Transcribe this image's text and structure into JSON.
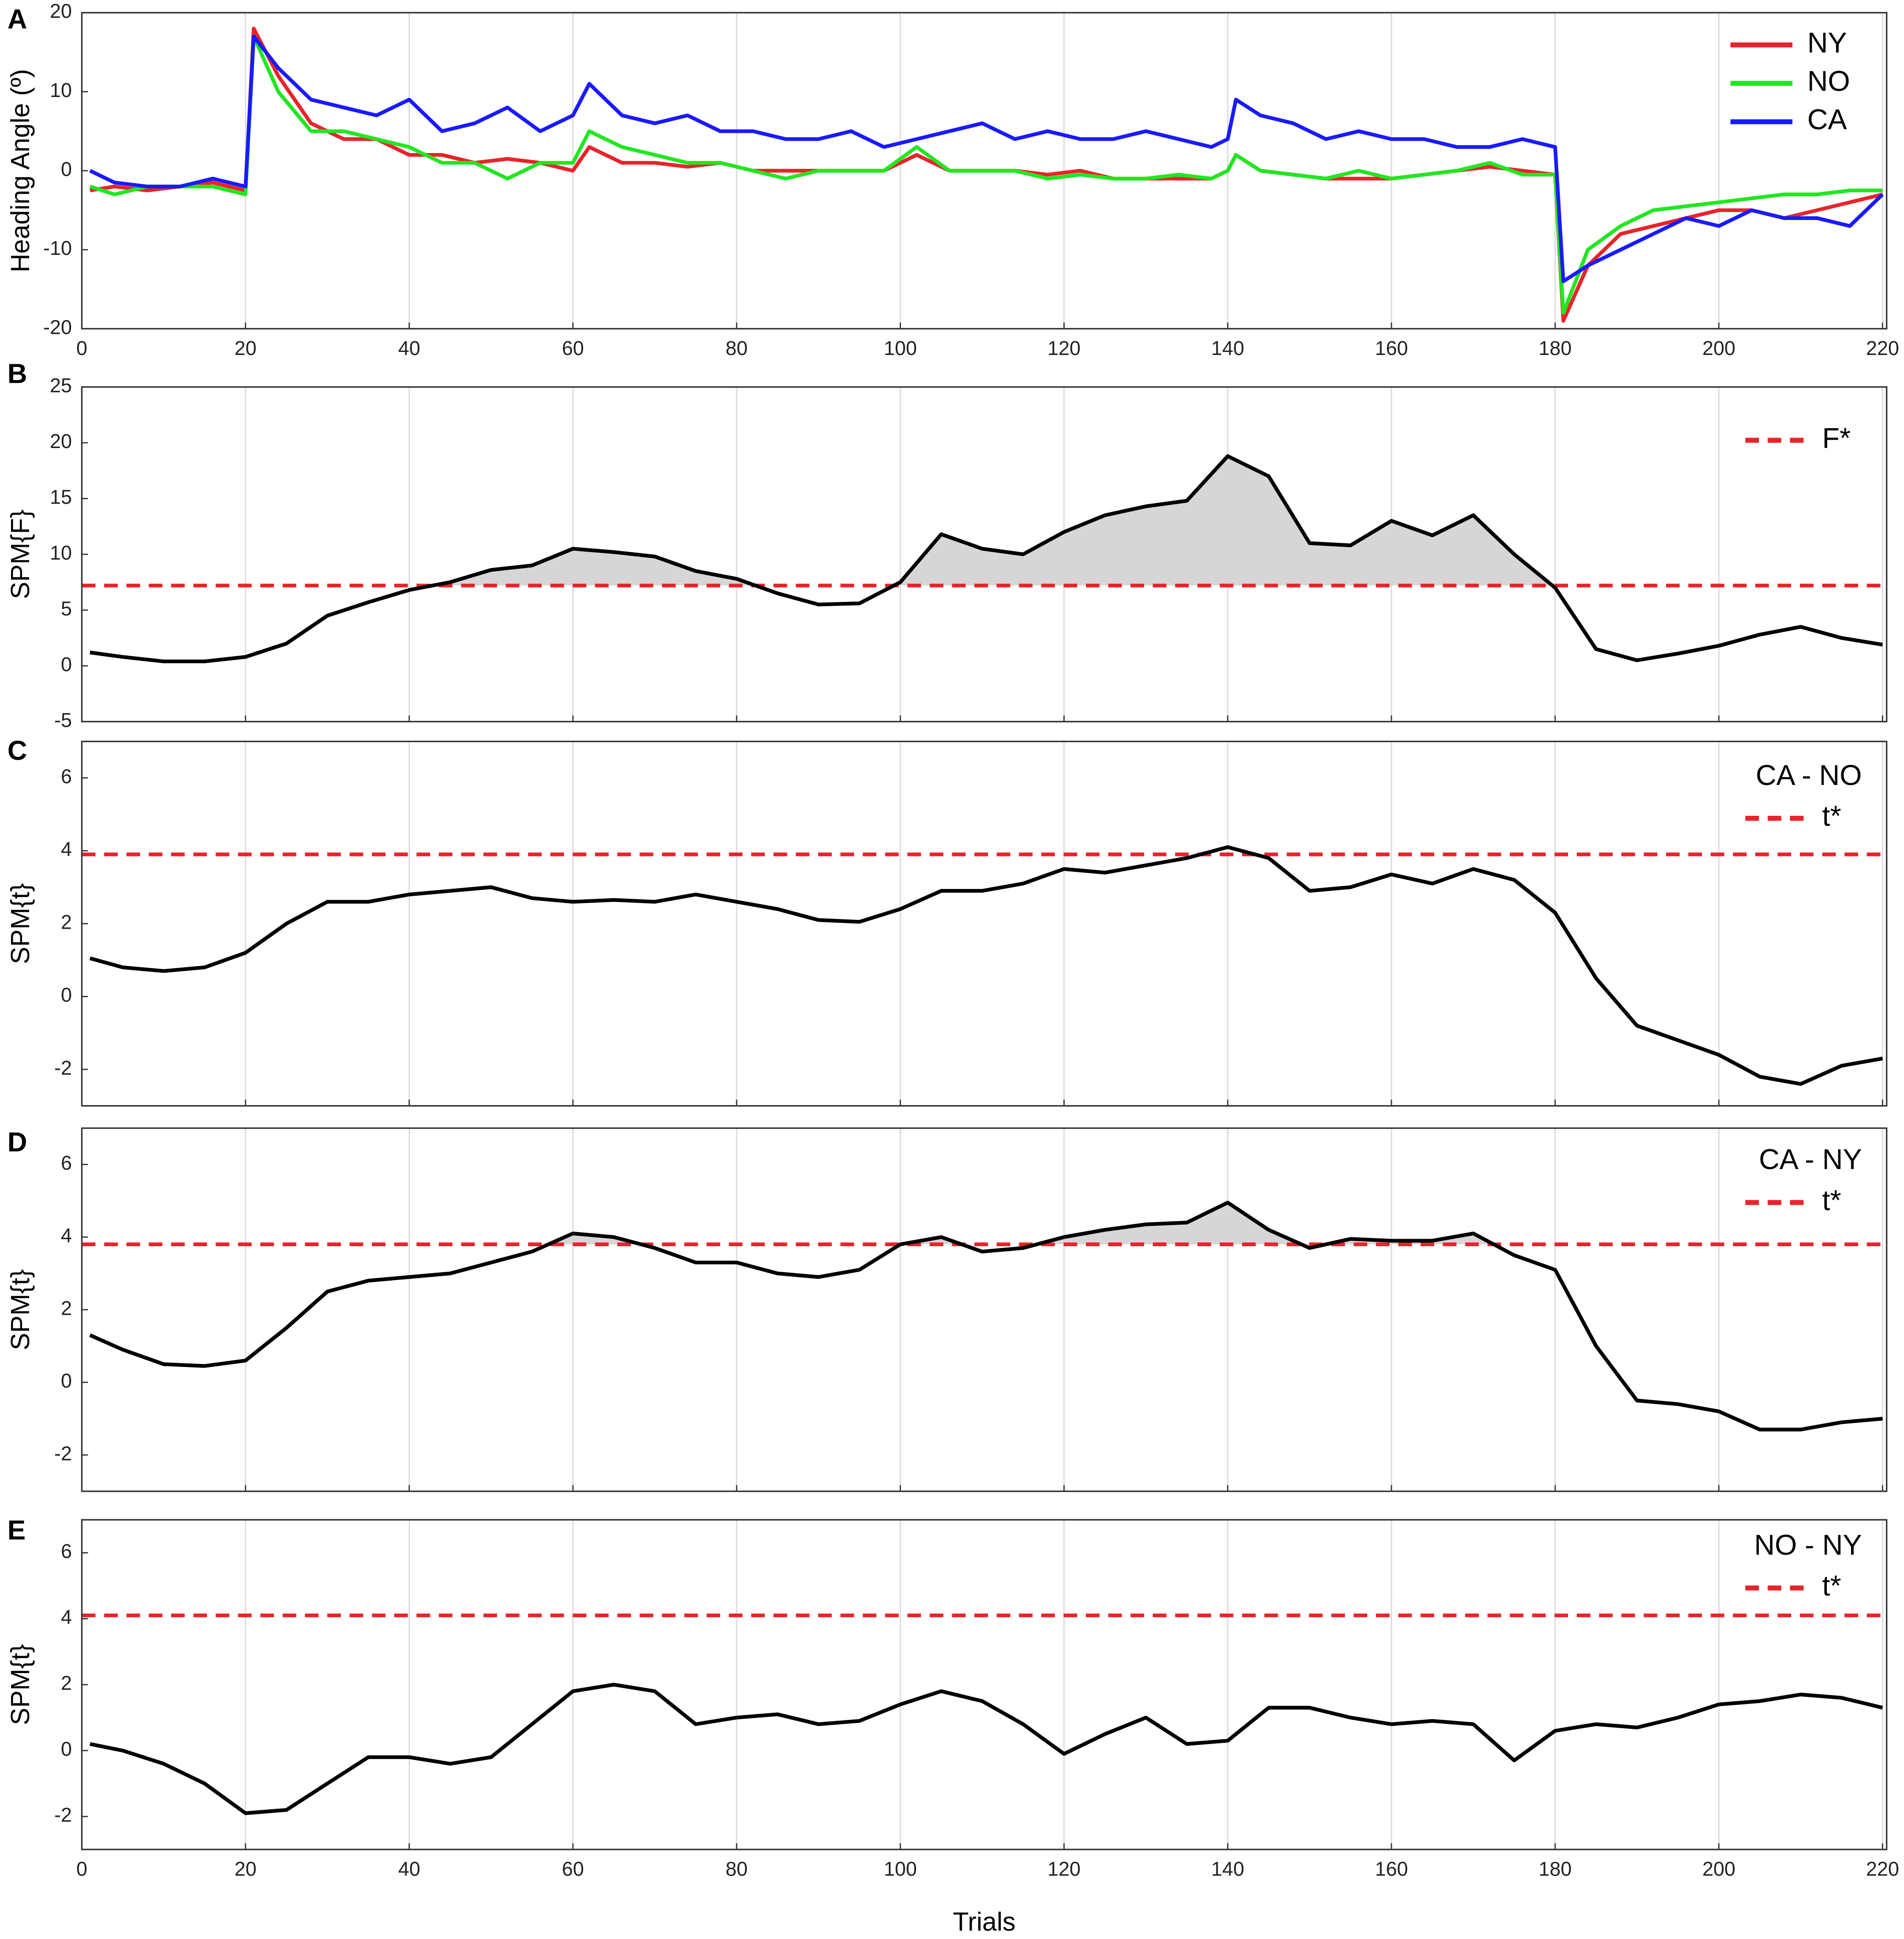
{
  "chart_data": [
    {
      "type": "line",
      "panel_label": "A",
      "ylabel": "Heading Angle (º)",
      "x": [
        1,
        4,
        8,
        12,
        16,
        20,
        21,
        24,
        28,
        32,
        36,
        40,
        44,
        48,
        52,
        56,
        60,
        62,
        66,
        70,
        74,
        78,
        82,
        86,
        90,
        94,
        98,
        102,
        106,
        110,
        114,
        118,
        122,
        126,
        130,
        134,
        138,
        140,
        141,
        144,
        148,
        152,
        156,
        160,
        164,
        168,
        172,
        176,
        180,
        181,
        184,
        188,
        192,
        196,
        200,
        204,
        208,
        212,
        216,
        220
      ],
      "series": [
        {
          "name": "NY",
          "color": "#e8242a",
          "values": [
            -2.5,
            -2,
            -2.5,
            -2,
            -1.5,
            -2.5,
            18,
            12,
            6,
            4,
            4,
            2,
            2,
            1,
            1.5,
            1,
            0,
            3,
            1,
            1,
            0.5,
            1,
            0,
            0,
            0,
            0,
            0,
            2,
            0,
            0,
            0,
            -0.5,
            0,
            -1,
            -1,
            -1,
            -1,
            0,
            2,
            0,
            -0.5,
            -1,
            -1,
            -1,
            -0.5,
            0,
            0.5,
            0,
            -0.5,
            -19,
            -12,
            -8,
            -7,
            -6,
            -5,
            -5,
            -6,
            -5,
            -4,
            -3
          ]
        },
        {
          "name": "NO",
          "color": "#22e622",
          "values": [
            -2,
            -3,
            -2,
            -2,
            -2,
            -3,
            17,
            10,
            5,
            5,
            4,
            3,
            1,
            1,
            -1,
            1,
            1,
            5,
            3,
            2,
            1,
            1,
            0,
            -1,
            0,
            0,
            0,
            3,
            0,
            0,
            0,
            -1,
            -0.5,
            -1,
            -1,
            -0.5,
            -1,
            0,
            2,
            0,
            -0.5,
            -1,
            0,
            -1,
            -0.5,
            0,
            1,
            -0.5,
            -0.5,
            -18,
            -10,
            -7,
            -5,
            -4.5,
            -4,
            -3.5,
            -3,
            -3,
            -2.5,
            -2.5
          ]
        },
        {
          "name": "CA",
          "color": "#1a1aff",
          "values": [
            0,
            -1.5,
            -2,
            -2,
            -1,
            -2,
            17,
            13,
            9,
            8,
            7,
            9,
            5,
            6,
            8,
            5,
            7,
            11,
            7,
            6,
            7,
            5,
            5,
            4,
            4,
            5,
            3,
            4,
            5,
            6,
            4,
            5,
            4,
            4,
            5,
            4,
            3,
            4,
            9,
            7,
            6,
            4,
            5,
            4,
            4,
            3,
            3,
            4,
            3,
            -14,
            -12,
            -10,
            -8,
            -6,
            -7,
            -5,
            -6,
            -6,
            -7,
            -3
          ]
        }
      ],
      "xlim": [
        0,
        220.5
      ],
      "xticks": [
        0,
        20,
        40,
        60,
        80,
        100,
        120,
        140,
        160,
        180,
        200,
        220
      ],
      "show_xtick_labels": true,
      "xgrid": true,
      "ylim": [
        -20,
        20
      ],
      "yticks": [
        -20,
        -10,
        0,
        10,
        20
      ]
    },
    {
      "type": "line",
      "panel_label": "B",
      "ylabel": "SPM{F}",
      "x": [
        1,
        5,
        10,
        15,
        20,
        25,
        30,
        35,
        40,
        45,
        50,
        55,
        60,
        65,
        70,
        75,
        80,
        85,
        90,
        95,
        100,
        105,
        110,
        115,
        120,
        125,
        130,
        135,
        140,
        145,
        150,
        155,
        160,
        165,
        170,
        175,
        180,
        185,
        190,
        195,
        200,
        205,
        210,
        215,
        220
      ],
      "values": [
        1.2,
        0.8,
        0.4,
        0.4,
        0.8,
        2,
        4.5,
        5.7,
        6.8,
        7.5,
        8.6,
        9,
        10.5,
        10.2,
        9.8,
        8.5,
        7.8,
        6.5,
        5.5,
        5.6,
        7.5,
        11.8,
        10.5,
        10,
        12,
        13.5,
        14.3,
        14.8,
        18.8,
        17,
        11,
        10.8,
        13,
        11.7,
        13.5,
        10,
        7,
        1.5,
        0.5,
        1.1,
        1.8,
        2.8,
        3.5,
        2.5,
        1.9
      ],
      "color": "#000000",
      "threshold": {
        "name": "F*",
        "value": 7.2,
        "color": "#e8242a"
      },
      "fill_above_threshold": true,
      "xlim": [
        0,
        220.5
      ],
      "xticks": [
        0,
        20,
        40,
        60,
        80,
        100,
        120,
        140,
        160,
        180,
        200,
        220
      ],
      "show_xtick_labels": false,
      "xgrid": true,
      "ylim": [
        -5,
        25
      ],
      "yticks": [
        -5,
        0,
        5,
        10,
        15,
        20,
        25
      ]
    },
    {
      "type": "line",
      "panel_label": "C",
      "ylabel": "SPM{t}",
      "legend_title": "CA - NO",
      "x": [
        1,
        5,
        10,
        15,
        20,
        25,
        30,
        35,
        40,
        45,
        50,
        55,
        60,
        65,
        70,
        75,
        80,
        85,
        90,
        95,
        100,
        105,
        110,
        115,
        120,
        125,
        130,
        135,
        140,
        145,
        150,
        155,
        160,
        165,
        170,
        175,
        180,
        185,
        190,
        195,
        200,
        205,
        210,
        215,
        220
      ],
      "values": [
        1.05,
        0.8,
        0.7,
        0.8,
        1.2,
        2,
        2.6,
        2.6,
        2.8,
        2.9,
        3,
        2.7,
        2.6,
        2.65,
        2.6,
        2.8,
        2.6,
        2.4,
        2.1,
        2.05,
        2.4,
        2.9,
        2.9,
        3.1,
        3.5,
        3.4,
        3.6,
        3.8,
        4.1,
        3.8,
        2.9,
        3,
        3.35,
        3.1,
        3.5,
        3.2,
        2.3,
        0.5,
        -0.8,
        -1.2,
        -1.6,
        -2.2,
        -2.4,
        -1.9,
        -1.7
      ],
      "color": "#000000",
      "threshold": {
        "name": "t*",
        "value": 3.9,
        "color": "#e8242a"
      },
      "fill_above_threshold": false,
      "xlim": [
        0,
        220.5
      ],
      "xticks": [
        0,
        20,
        40,
        60,
        80,
        100,
        120,
        140,
        160,
        180,
        200,
        220
      ],
      "show_xtick_labels": false,
      "xgrid": true,
      "ylim": [
        -3,
        7
      ],
      "yticks": [
        -2,
        0,
        2,
        4,
        6
      ]
    },
    {
      "type": "line",
      "panel_label": "D",
      "ylabel": "SPM{t}",
      "legend_title": "CA - NY",
      "x": [
        1,
        5,
        10,
        15,
        20,
        25,
        30,
        35,
        40,
        45,
        50,
        55,
        60,
        65,
        70,
        75,
        80,
        85,
        90,
        95,
        100,
        105,
        110,
        115,
        120,
        125,
        130,
        135,
        140,
        145,
        150,
        155,
        160,
        165,
        170,
        175,
        180,
        185,
        190,
        195,
        200,
        205,
        210,
        215,
        220
      ],
      "values": [
        1.3,
        0.9,
        0.5,
        0.45,
        0.6,
        1.5,
        2.5,
        2.8,
        2.9,
        3,
        3.3,
        3.6,
        4.1,
        4,
        3.7,
        3.3,
        3.3,
        3,
        2.9,
        3.1,
        3.8,
        4,
        3.6,
        3.7,
        4,
        4.2,
        4.35,
        4.4,
        4.95,
        4.2,
        3.7,
        3.95,
        3.9,
        3.9,
        4.1,
        3.5,
        3.1,
        1,
        -0.5,
        -0.6,
        -0.8,
        -1.3,
        -1.3,
        -1.1,
        -1
      ],
      "color": "#000000",
      "threshold": {
        "name": "t*",
        "value": 3.8,
        "color": "#e8242a"
      },
      "fill_above_threshold": true,
      "xlim": [
        0,
        220.5
      ],
      "xticks": [
        0,
        20,
        40,
        60,
        80,
        100,
        120,
        140,
        160,
        180,
        200,
        220
      ],
      "show_xtick_labels": false,
      "xgrid": true,
      "ylim": [
        -3,
        7
      ],
      "yticks": [
        -2,
        0,
        2,
        4,
        6
      ]
    },
    {
      "type": "line",
      "panel_label": "E",
      "ylabel": "SPM{t}",
      "legend_title": "NO - NY",
      "xlabel": "Trials",
      "x": [
        1,
        5,
        10,
        15,
        20,
        25,
        30,
        35,
        40,
        45,
        50,
        55,
        60,
        65,
        70,
        75,
        80,
        85,
        90,
        95,
        100,
        105,
        110,
        115,
        120,
        125,
        130,
        135,
        140,
        145,
        150,
        155,
        160,
        165,
        170,
        175,
        180,
        185,
        190,
        195,
        200,
        205,
        210,
        215,
        220
      ],
      "values": [
        0.2,
        0,
        -0.4,
        -1,
        -1.9,
        -1.8,
        -1,
        -0.2,
        -0.2,
        -0.4,
        -0.2,
        0.8,
        1.8,
        2,
        1.8,
        0.8,
        1,
        1.1,
        0.8,
        0.9,
        1.4,
        1.8,
        1.5,
        0.8,
        -0.1,
        0.5,
        1,
        0.2,
        0.3,
        1.3,
        1.3,
        1,
        0.8,
        0.9,
        0.8,
        -0.3,
        0.6,
        0.8,
        0.7,
        1,
        1.4,
        1.5,
        1.7,
        1.6,
        1.3
      ],
      "color": "#000000",
      "threshold": {
        "name": "t*",
        "value": 4.1,
        "color": "#e8242a"
      },
      "fill_above_threshold": false,
      "xlim": [
        0,
        220.5
      ],
      "xticks": [
        0,
        20,
        40,
        60,
        80,
        100,
        120,
        140,
        160,
        180,
        200,
        220
      ],
      "show_xtick_labels": true,
      "xgrid": true,
      "ylim": [
        -3,
        7
      ],
      "yticks": [
        -2,
        0,
        2,
        4,
        6
      ]
    }
  ]
}
